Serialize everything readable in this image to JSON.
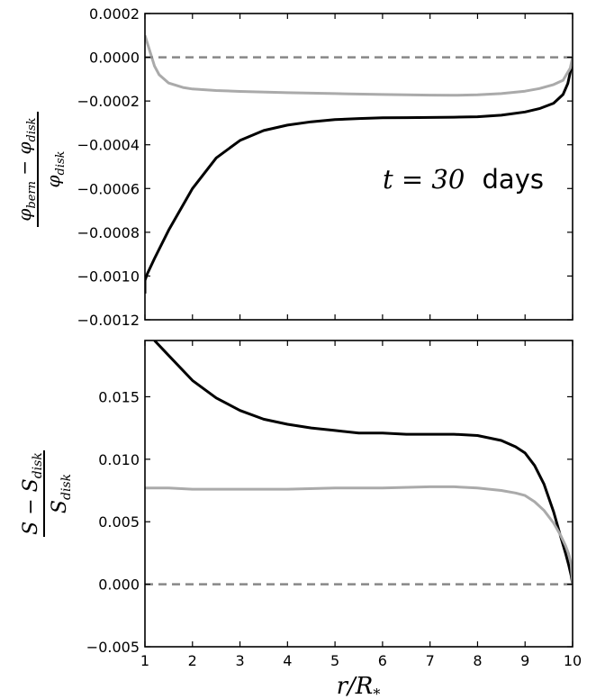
{
  "chart_data": [
    {
      "type": "line",
      "title": "",
      "xlabel": "",
      "ylabel": {
        "numerator": "φ_bern − φ_disk",
        "denominator": "φ_disk"
      },
      "xlim": [
        1,
        10
      ],
      "ylim": [
        -0.0012,
        0.0002
      ],
      "x_ticks": [
        "1",
        "2",
        "3",
        "4",
        "5",
        "6",
        "7",
        "8",
        "9",
        "10"
      ],
      "x_tick_labels_visible": false,
      "y_ticks": [
        0.0002,
        0.0,
        -0.0002,
        -0.0004,
        -0.0006,
        -0.0008,
        -0.001,
        -0.0012
      ],
      "y_tick_labels": [
        "0.0002",
        "0.0000",
        "−0.0002",
        "−0.0004",
        "−0.0006",
        "−0.0008",
        "−0.0010",
        "−0.0012"
      ],
      "annotation": {
        "math": "t = 30",
        "text": "days"
      },
      "grid": false,
      "legend": "none",
      "series": [
        {
          "color": "#000000",
          "x": [
            1.0,
            1.0,
            1.05,
            1.2,
            1.5,
            2.0,
            2.5,
            3.0,
            3.5,
            4.0,
            4.5,
            5.0,
            5.5,
            6.0,
            6.5,
            7.0,
            7.5,
            8.0,
            8.5,
            9.0,
            9.3,
            9.6,
            9.8,
            9.9,
            9.97,
            10.0
          ],
          "y": [
            -0.00108,
            -0.00102,
            -0.00099,
            -0.00092,
            -0.00079,
            -0.0006,
            -0.00046,
            -0.00038,
            -0.000335,
            -0.00031,
            -0.000295,
            -0.000285,
            -0.00028,
            -0.000277,
            -0.000276,
            -0.000275,
            -0.000274,
            -0.000272,
            -0.000265,
            -0.00025,
            -0.000235,
            -0.00021,
            -0.00017,
            -0.00012,
            -5e-05,
            0.0
          ]
        },
        {
          "color": "#aaaaaa",
          "x": [
            1.0,
            1.1,
            1.2,
            1.3,
            1.5,
            1.8,
            2.0,
            2.5,
            3.0,
            4.0,
            5.0,
            6.0,
            7.0,
            7.5,
            8.0,
            8.5,
            9.0,
            9.3,
            9.6,
            9.8,
            9.95,
            10.0
          ],
          "y": [
            0.0001,
            3e-05,
            -4e-05,
            -8e-05,
            -0.000118,
            -0.000138,
            -0.000145,
            -0.000152,
            -0.000156,
            -0.000162,
            -0.000166,
            -0.00017,
            -0.000173,
            -0.000174,
            -0.000172,
            -0.000166,
            -0.000155,
            -0.000143,
            -0.000125,
            -0.000105,
            -5e-05,
            0.0
          ]
        },
        {
          "color": "#888888",
          "dashed": true,
          "x": [
            1,
            10
          ],
          "y": [
            0,
            0
          ]
        }
      ]
    },
    {
      "type": "line",
      "title": "",
      "xlabel": {
        "numerator": "r",
        "denominator": "R",
        "subscript": "*"
      },
      "ylabel": {
        "numerator": "S − S_disk",
        "denominator": "S_disk"
      },
      "xlim": [
        1,
        10
      ],
      "ylim": [
        -0.005,
        0.0195
      ],
      "x_ticks": [
        "1",
        "2",
        "3",
        "4",
        "5",
        "6",
        "7",
        "8",
        "9",
        "10"
      ],
      "x_tick_labels_visible": true,
      "y_ticks": [
        0.015,
        0.01,
        0.005,
        0.0,
        -0.005
      ],
      "y_tick_labels": [
        "0.015",
        "0.010",
        "0.005",
        "0.000",
        "−0.005"
      ],
      "grid": false,
      "legend": "none",
      "series": [
        {
          "color": "#000000",
          "x": [
            1.2,
            1.5,
            2.0,
            2.5,
            3.0,
            3.5,
            4.0,
            4.5,
            5.0,
            5.5,
            6.0,
            6.5,
            7.0,
            7.5,
            8.0,
            8.5,
            8.8,
            9.0,
            9.2,
            9.4,
            9.6,
            9.75,
            9.85,
            9.92,
            9.97,
            10.0
          ],
          "y": [
            0.0195,
            0.0183,
            0.0163,
            0.0149,
            0.0139,
            0.0132,
            0.0128,
            0.0125,
            0.0123,
            0.0121,
            0.0121,
            0.012,
            0.012,
            0.012,
            0.0119,
            0.0115,
            0.011,
            0.0105,
            0.0095,
            0.008,
            0.0058,
            0.0038,
            0.0025,
            0.0015,
            0.0007,
            0.0
          ]
        },
        {
          "color": "#aaaaaa",
          "x": [
            1.0,
            1.5,
            2.0,
            3.0,
            4.0,
            5.0,
            6.0,
            7.0,
            7.5,
            8.0,
            8.5,
            8.8,
            9.0,
            9.2,
            9.4,
            9.6,
            9.75,
            9.85,
            9.92,
            9.97,
            10.0
          ],
          "y": [
            0.0077,
            0.0077,
            0.0076,
            0.0076,
            0.0076,
            0.0077,
            0.0077,
            0.0078,
            0.0078,
            0.0077,
            0.0075,
            0.0073,
            0.0071,
            0.0066,
            0.0059,
            0.0049,
            0.0039,
            0.0031,
            0.0024,
            0.0016,
            0.0
          ]
        },
        {
          "color": "#888888",
          "dashed": true,
          "x": [
            1,
            10
          ],
          "y": [
            0,
            0
          ]
        }
      ]
    }
  ]
}
